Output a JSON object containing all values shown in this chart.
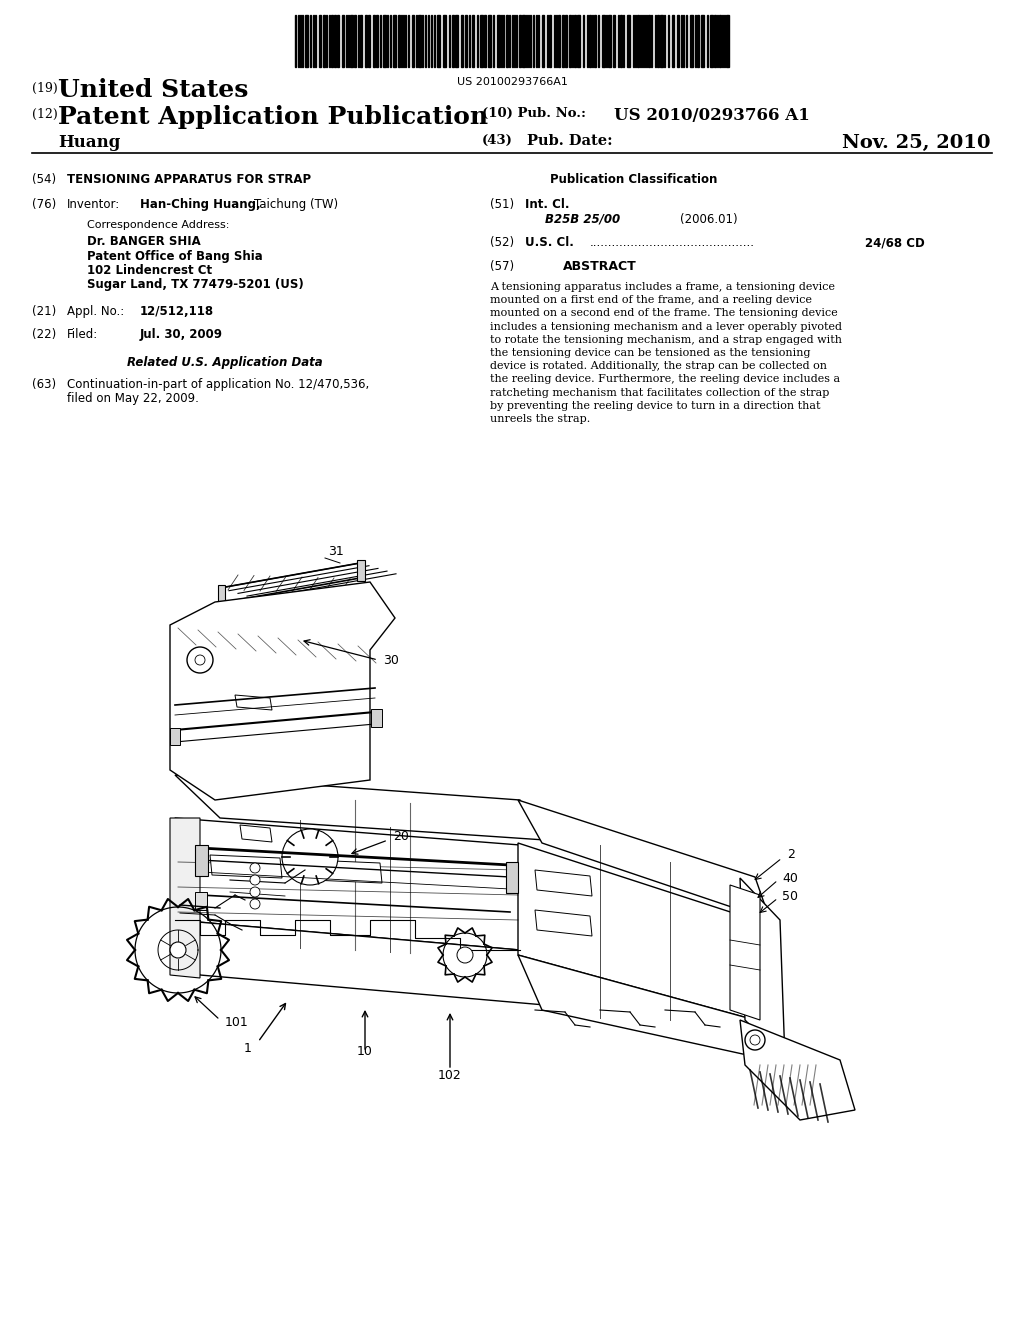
{
  "background_color": "#ffffff",
  "barcode_text": "US 20100293766A1",
  "header_country_num": "(19)",
  "header_country": "United States",
  "header_type_num": "(12)",
  "header_type": "Patent Application Publication",
  "header_pub_num_label": "(10) Pub. No.:",
  "header_pub_num": "US 2010/0293766 A1",
  "header_inventor_label": "Huang",
  "header_pub_date_num": "(43)",
  "header_pub_date_label": "Pub. Date:",
  "header_pub_date": "Nov. 25, 2010",
  "lc_title_num": "(54)",
  "lc_title": "TENSIONING APPARATUS FOR STRAP",
  "lc_inventor_num": "(76)",
  "lc_inventor_label": "Inventor:",
  "lc_inventor_name": "Han-Ching Huang,",
  "lc_inventor_city": "Taichung (TW)",
  "lc_corr_label": "Correspondence Address:",
  "lc_corr_name": "Dr. BANGER SHIA",
  "lc_corr_org": "Patent Office of Bang Shia",
  "lc_corr_addr1": "102 Lindencrest Ct",
  "lc_corr_addr2": "Sugar Land, TX 77479-5201 (US)",
  "lc_appl_num": "(21)",
  "lc_appl_label": "Appl. No.:",
  "lc_appl_value": "12/512,118",
  "lc_filed_num": "(22)",
  "lc_filed_label": "Filed:",
  "lc_filed_date": "Jul. 30, 2009",
  "lc_related_header": "Related U.S. Application Data",
  "lc_related_num": "(63)",
  "lc_related_text1": "Continuation-in-part of application No. 12/470,536,",
  "lc_related_text2": "filed on May 22, 2009.",
  "rc_pub_class_label": "Publication Classification",
  "rc_int_cl_num": "(51)",
  "rc_int_cl_label": "Int. Cl.",
  "rc_int_cl_class": "B25B 25/00",
  "rc_int_cl_year": "(2006.01)",
  "rc_us_cl_num": "(52)",
  "rc_us_cl_label": "U.S. Cl.",
  "rc_us_cl_dots": "............................................",
  "rc_us_cl_value": "24/68 CD",
  "rc_abstract_num": "(57)",
  "rc_abstract_label": "ABSTRACT",
  "rc_abstract_lines": [
    "A tensioning apparatus includes a frame, a tensioning device",
    "mounted on a first end of the frame, and a reeling device",
    "mounted on a second end of the frame. The tensioning device",
    "includes a tensioning mechanism and a lever operably pivoted",
    "to rotate the tensioning mechanism, and a strap engaged with",
    "the tensioning device can be tensioned as the tensioning",
    "device is rotated. Additionally, the strap can be collected on",
    "the reeling device. Furthermore, the reeling device includes a",
    "ratcheting mechanism that facilitates collection of the strap",
    "by preventing the reeling device to turn in a direction that",
    "unreels the strap."
  ]
}
